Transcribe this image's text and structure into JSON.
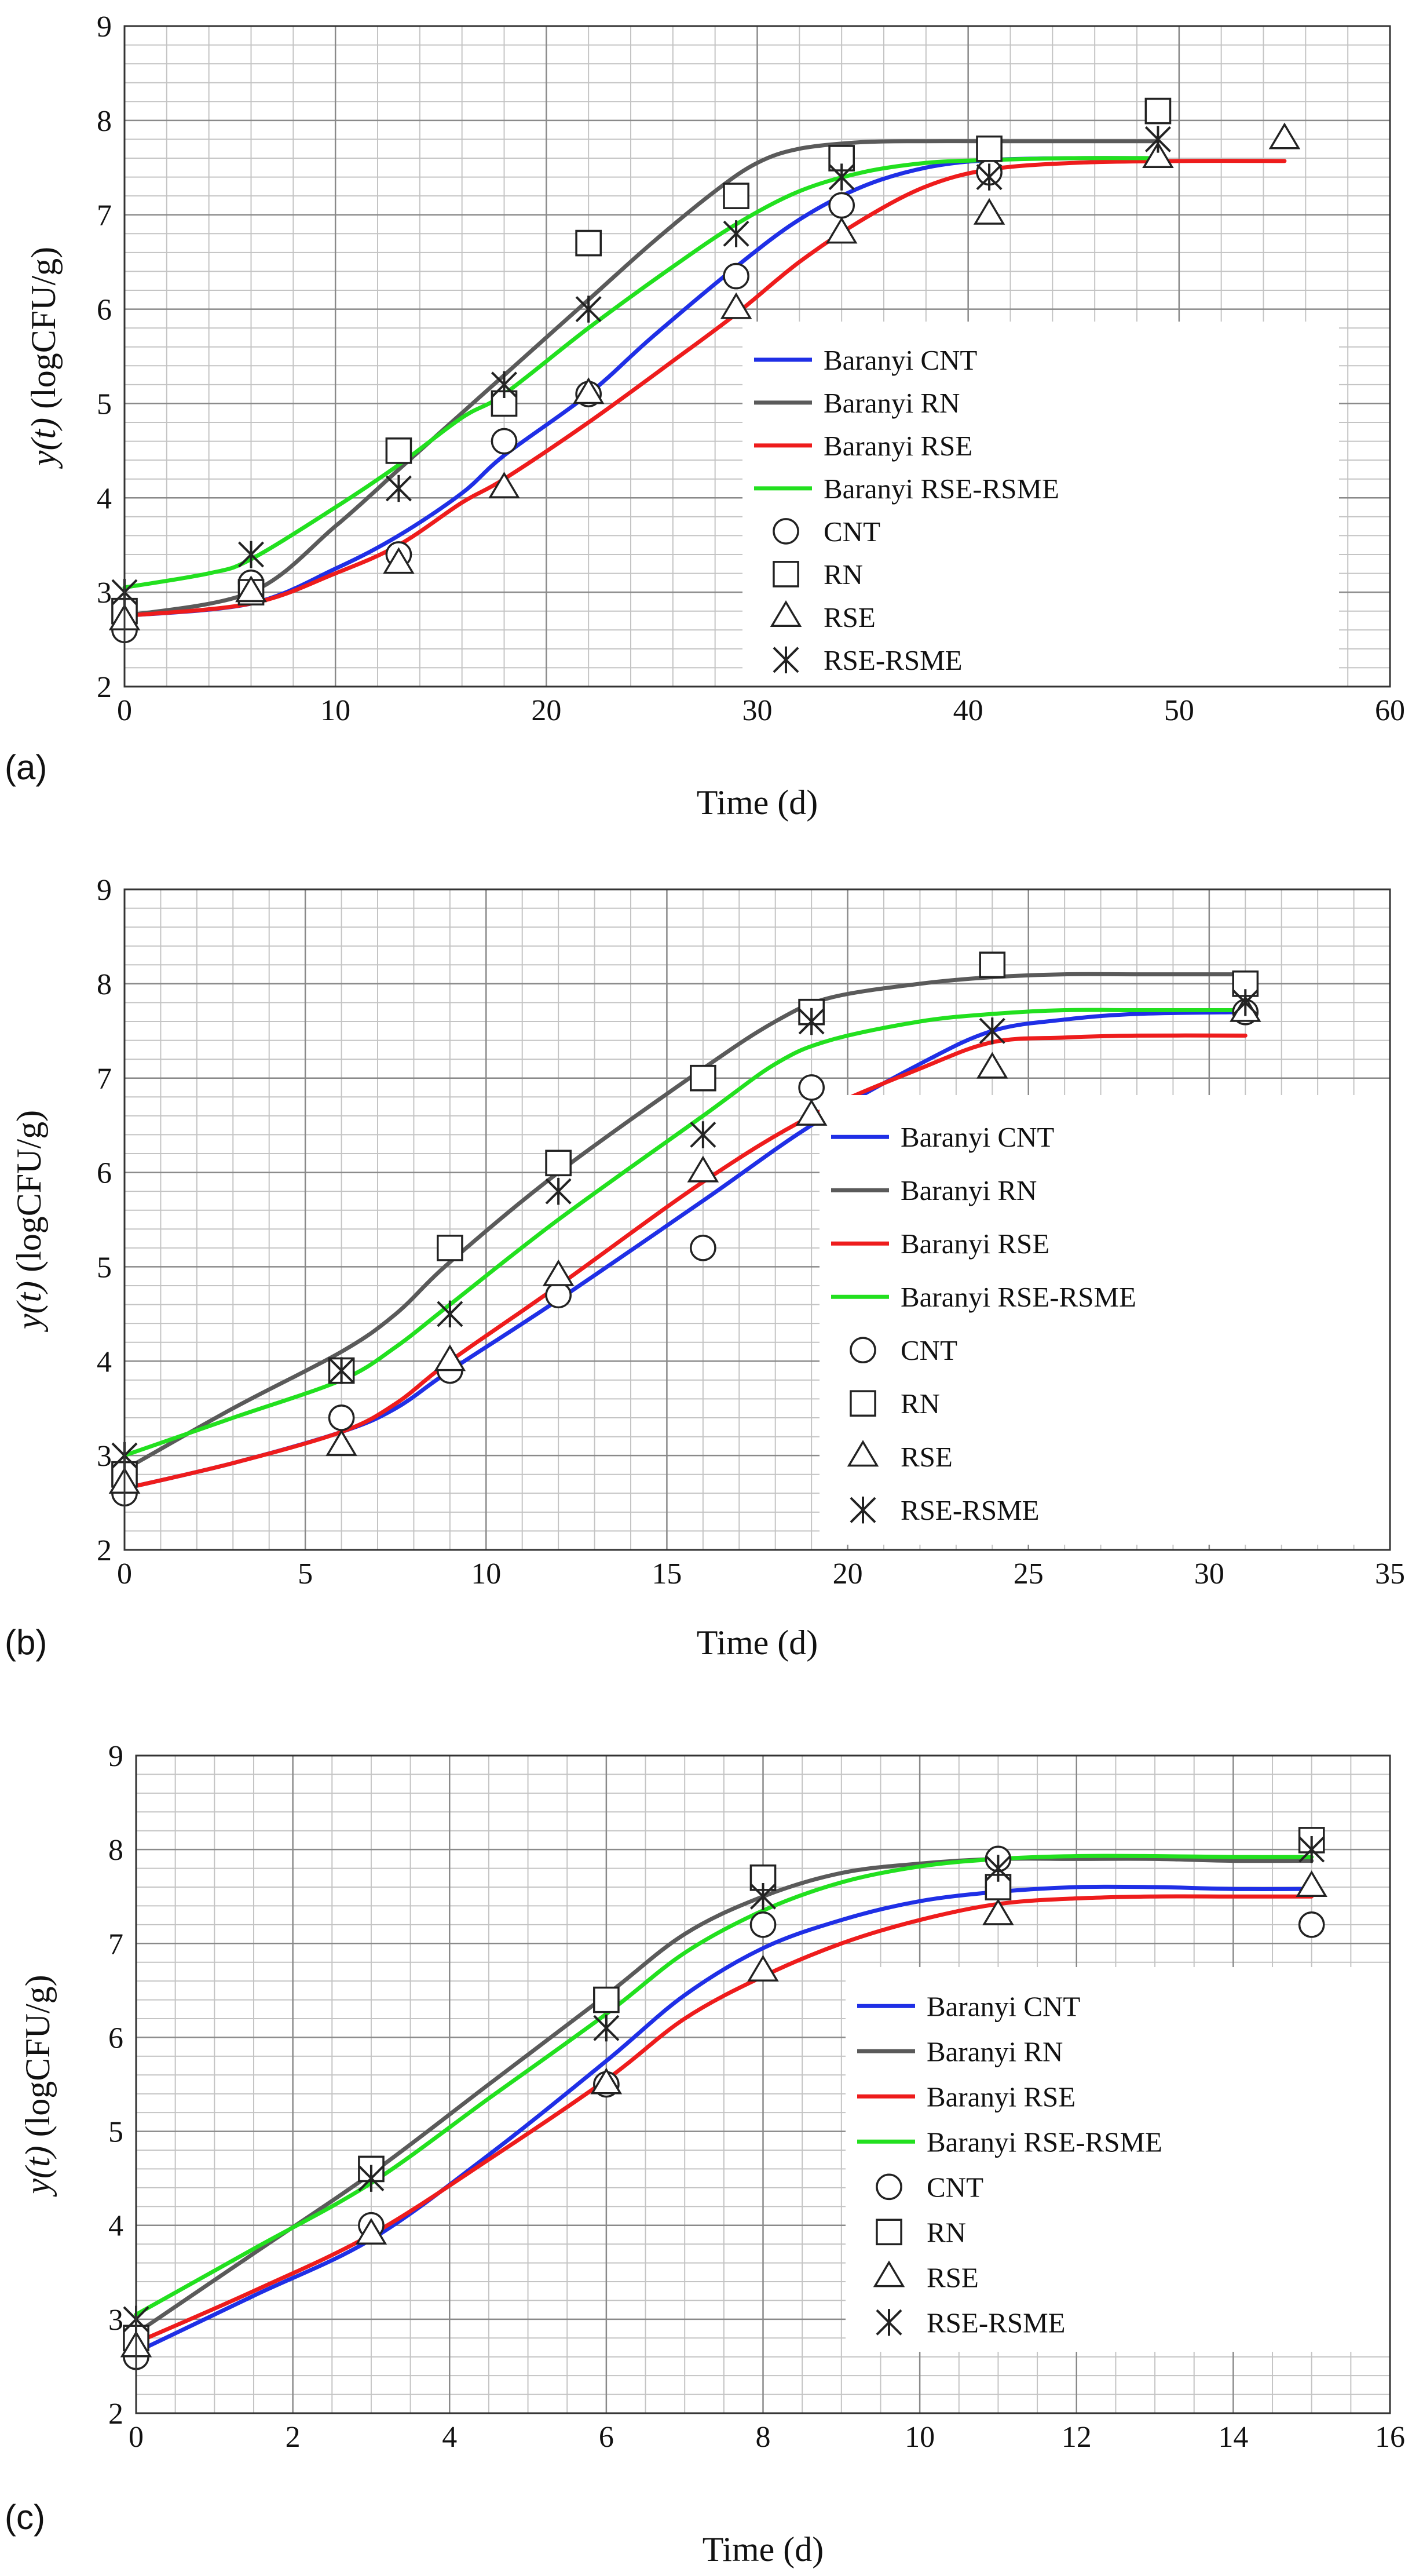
{
  "colors": {
    "Baranyi CNT": "#1f2fe6",
    "Baranyi RN": "#5a5a5a",
    "Baranyi RSE": "#ee1c1c",
    "Baranyi RSE-RSME": "#22e01f"
  },
  "chart_data": [
    {
      "type": "line",
      "panel_label": "(a)",
      "xlabel": "Time (d)",
      "ylabel_italic": "y(t)",
      "ylabel_rest": "(logCFU/g)",
      "xlim": [
        0,
        60
      ],
      "ylim": [
        2,
        9
      ],
      "x_ticks": [
        0,
        10,
        20,
        30,
        40,
        50,
        60
      ],
      "y_ticks": [
        2,
        3,
        4,
        5,
        6,
        7,
        8,
        9
      ],
      "legend": {
        "entries": [
          "Baranyi CNT",
          "Baranyi RN",
          "Baranyi RSE",
          "Baranyi RSE-RSME",
          "CNT",
          "RN",
          "RSE",
          "RSE-RSME"
        ]
      },
      "series": [
        {
          "name": "Baranyi CNT",
          "kind": "line",
          "x": [
            0,
            6,
            10,
            13,
            16,
            18,
            22,
            25,
            29,
            32,
            35,
            38,
            41,
            45,
            49
          ],
          "y": [
            2.75,
            2.88,
            3.25,
            3.6,
            4.05,
            4.45,
            5.1,
            5.7,
            6.45,
            6.95,
            7.3,
            7.5,
            7.58,
            7.6,
            7.6
          ]
        },
        {
          "name": "Baranyi RN",
          "kind": "line",
          "x": [
            0,
            6,
            10,
            13,
            16,
            18,
            22,
            25,
            28,
            30,
            32,
            35,
            38,
            41,
            45,
            49
          ],
          "y": [
            2.75,
            3.0,
            3.7,
            4.3,
            4.9,
            5.3,
            6.1,
            6.7,
            7.25,
            7.55,
            7.7,
            7.77,
            7.78,
            7.78,
            7.78,
            7.78
          ]
        },
        {
          "name": "Baranyi RSE",
          "kind": "line",
          "x": [
            0,
            6,
            10,
            13,
            16,
            18,
            22,
            26,
            29,
            32,
            35,
            38,
            41,
            45,
            50,
            55
          ],
          "y": [
            2.75,
            2.88,
            3.2,
            3.5,
            3.95,
            4.2,
            4.8,
            5.45,
            5.95,
            6.5,
            6.95,
            7.3,
            7.48,
            7.55,
            7.57,
            7.57
          ]
        },
        {
          "name": "Baranyi RSE-RSME",
          "kind": "line",
          "x": [
            0,
            4,
            6,
            10,
            13,
            16,
            18,
            22,
            26,
            29,
            32,
            35,
            38,
            41,
            45,
            49
          ],
          "y": [
            3.05,
            3.2,
            3.35,
            3.9,
            4.35,
            4.85,
            5.1,
            5.8,
            6.45,
            6.9,
            7.25,
            7.45,
            7.55,
            7.58,
            7.6,
            7.6
          ]
        },
        {
          "name": "CNT",
          "kind": "marker",
          "marker": "circle",
          "x": [
            0,
            6,
            13,
            18,
            22,
            29,
            34,
            41
          ],
          "y": [
            2.6,
            3.1,
            3.4,
            4.6,
            5.1,
            6.35,
            7.1,
            7.45
          ]
        },
        {
          "name": "RN",
          "kind": "marker",
          "marker": "square",
          "x": [
            0,
            6,
            13,
            18,
            22,
            29,
            34,
            41,
            49
          ],
          "y": [
            2.8,
            3.0,
            4.5,
            5.0,
            6.7,
            7.2,
            7.6,
            7.7,
            8.1
          ]
        },
        {
          "name": "RSE",
          "kind": "marker",
          "marker": "triangle",
          "x": [
            0,
            6,
            13,
            18,
            22,
            29,
            34,
            41,
            49,
            55
          ],
          "y": [
            2.7,
            3.0,
            3.3,
            4.1,
            5.1,
            6.0,
            6.8,
            7.0,
            7.6,
            7.8
          ]
        },
        {
          "name": "RSE-RSME",
          "kind": "marker",
          "marker": "asterisk",
          "x": [
            0,
            6,
            13,
            18,
            22,
            29,
            34,
            41,
            49
          ],
          "y": [
            3.0,
            3.4,
            4.1,
            5.2,
            6.0,
            6.8,
            7.4,
            7.4,
            7.8
          ]
        }
      ]
    },
    {
      "type": "line",
      "panel_label": "(b)",
      "xlabel": "Time (d)",
      "ylabel_italic": "y(t)",
      "ylabel_rest": "(logCFU/g)",
      "xlim": [
        0,
        35
      ],
      "ylim": [
        2,
        9
      ],
      "x_ticks": [
        0,
        5,
        10,
        15,
        20,
        25,
        30,
        35
      ],
      "y_ticks": [
        2,
        3,
        4,
        5,
        6,
        7,
        8,
        9
      ],
      "legend": {
        "entries": [
          "Baranyi CNT",
          "Baranyi RN",
          "Baranyi RSE",
          "Baranyi RSE-RSME",
          "CNT",
          "RN",
          "RSE",
          "RSE-RSME"
        ]
      },
      "series": [
        {
          "name": "Baranyi CNT",
          "kind": "line",
          "x": [
            0,
            3,
            6,
            7.5,
            9,
            12,
            16,
            19,
            22,
            24,
            26,
            28,
            31
          ],
          "y": [
            2.65,
            2.92,
            3.25,
            3.5,
            3.9,
            4.65,
            5.7,
            6.5,
            7.15,
            7.5,
            7.62,
            7.68,
            7.7
          ]
        },
        {
          "name": "Baranyi RN",
          "kind": "line",
          "x": [
            0,
            3,
            6,
            7.5,
            9,
            12,
            16,
            18,
            19.5,
            22,
            24,
            26,
            28,
            31
          ],
          "y": [
            2.85,
            3.5,
            4.1,
            4.5,
            5.05,
            6.0,
            7.1,
            7.6,
            7.85,
            8.0,
            8.07,
            8.1,
            8.1,
            8.1
          ]
        },
        {
          "name": "Baranyi RSE",
          "kind": "line",
          "x": [
            0,
            3,
            6,
            7.5,
            9,
            12,
            16,
            19,
            22,
            24,
            26,
            28,
            31
          ],
          "y": [
            2.65,
            2.92,
            3.25,
            3.55,
            4.0,
            4.8,
            5.9,
            6.6,
            7.1,
            7.38,
            7.43,
            7.45,
            7.45
          ]
        },
        {
          "name": "Baranyi RSE-RSME",
          "kind": "line",
          "x": [
            0,
            3,
            6,
            7.5,
            9,
            12,
            16,
            18,
            19.5,
            22,
            24,
            26,
            28,
            31
          ],
          "y": [
            3.0,
            3.4,
            3.8,
            4.15,
            4.6,
            5.5,
            6.6,
            7.15,
            7.4,
            7.6,
            7.68,
            7.72,
            7.72,
            7.72
          ]
        },
        {
          "name": "CNT",
          "kind": "marker",
          "marker": "circle",
          "x": [
            0,
            6,
            9,
            12,
            16,
            19,
            31
          ],
          "y": [
            2.6,
            3.4,
            3.9,
            4.7,
            5.2,
            6.9,
            7.7
          ]
        },
        {
          "name": "RN",
          "kind": "marker",
          "marker": "square",
          "x": [
            0,
            6,
            9,
            12,
            16,
            19,
            24,
            31
          ],
          "y": [
            2.8,
            3.9,
            5.2,
            6.1,
            7.0,
            7.7,
            8.2,
            8.0
          ]
        },
        {
          "name": "RSE",
          "kind": "marker",
          "marker": "triangle",
          "x": [
            0,
            6,
            9,
            12,
            16,
            19,
            24,
            31
          ],
          "y": [
            2.7,
            3.1,
            4.0,
            4.9,
            6.0,
            6.6,
            7.1,
            7.7
          ]
        },
        {
          "name": "RSE-RSME",
          "kind": "marker",
          "marker": "asterisk",
          "x": [
            0,
            6,
            9,
            12,
            16,
            19,
            24,
            31
          ],
          "y": [
            3.0,
            3.9,
            4.5,
            5.8,
            6.4,
            7.6,
            7.5,
            7.8
          ]
        }
      ]
    },
    {
      "type": "line",
      "panel_label": "(c)",
      "xlabel": "Time (d)",
      "ylabel_italic": "y(t)",
      "ylabel_rest": "(logCFU/g)",
      "xlim": [
        0,
        16
      ],
      "ylim": [
        2,
        9
      ],
      "x_ticks": [
        0,
        2,
        4,
        6,
        8,
        10,
        12,
        14,
        16
      ],
      "y_ticks": [
        2,
        3,
        4,
        5,
        6,
        7,
        8,
        9
      ],
      "legend": {
        "entries": [
          "Baranyi CNT",
          "Baranyi RN",
          "Baranyi RSE",
          "Baranyi RSE-RSME",
          "CNT",
          "RN",
          "RSE",
          "RSE-RSME"
        ]
      },
      "series": [
        {
          "name": "Baranyi CNT",
          "kind": "line",
          "x": [
            0,
            1.5,
            3,
            4.5,
            6,
            7,
            8,
            9,
            10,
            11,
            12,
            13,
            14,
            15
          ],
          "y": [
            2.65,
            3.25,
            3.85,
            4.75,
            5.75,
            6.45,
            6.95,
            7.25,
            7.45,
            7.55,
            7.6,
            7.6,
            7.58,
            7.58
          ]
        },
        {
          "name": "Baranyi RN",
          "kind": "line",
          "x": [
            0,
            1.5,
            3,
            4.5,
            6,
            7,
            8,
            9,
            10,
            11,
            12,
            13,
            14,
            15
          ],
          "y": [
            2.85,
            3.7,
            4.55,
            5.5,
            6.45,
            7.1,
            7.5,
            7.75,
            7.85,
            7.9,
            7.9,
            7.9,
            7.88,
            7.88
          ]
        },
        {
          "name": "Baranyi RSE",
          "kind": "line",
          "x": [
            0,
            1.5,
            3,
            4.5,
            6,
            7,
            8,
            9,
            10,
            11,
            12,
            13,
            14,
            15
          ],
          "y": [
            2.75,
            3.3,
            3.9,
            4.7,
            5.55,
            6.2,
            6.65,
            7.0,
            7.25,
            7.42,
            7.48,
            7.5,
            7.5,
            7.5
          ]
        },
        {
          "name": "Baranyi RSE-RSME",
          "kind": "line",
          "x": [
            0,
            1.5,
            3,
            4.5,
            6,
            7,
            8,
            9,
            10,
            11,
            12,
            13,
            14,
            15
          ],
          "y": [
            3.05,
            3.75,
            4.45,
            5.35,
            6.25,
            6.9,
            7.35,
            7.65,
            7.82,
            7.9,
            7.93,
            7.93,
            7.92,
            7.92
          ]
        },
        {
          "name": "CNT",
          "kind": "marker",
          "marker": "circle",
          "x": [
            0,
            3,
            6,
            8,
            11,
            15
          ],
          "y": [
            2.6,
            4.0,
            5.5,
            7.2,
            7.9,
            7.2
          ]
        },
        {
          "name": "RN",
          "kind": "marker",
          "marker": "square",
          "x": [
            0,
            3,
            6,
            8,
            11,
            15
          ],
          "y": [
            2.8,
            4.6,
            6.4,
            7.7,
            7.6,
            8.1
          ]
        },
        {
          "name": "RSE",
          "kind": "marker",
          "marker": "triangle",
          "x": [
            0,
            3,
            6,
            8,
            11,
            15
          ],
          "y": [
            2.7,
            3.9,
            5.5,
            6.7,
            7.3,
            7.6
          ]
        },
        {
          "name": "RSE-RSME",
          "kind": "marker",
          "marker": "asterisk",
          "x": [
            0,
            3,
            6,
            8,
            11,
            15
          ],
          "y": [
            3.0,
            4.5,
            6.1,
            7.5,
            7.8,
            8.0
          ]
        }
      ]
    }
  ]
}
